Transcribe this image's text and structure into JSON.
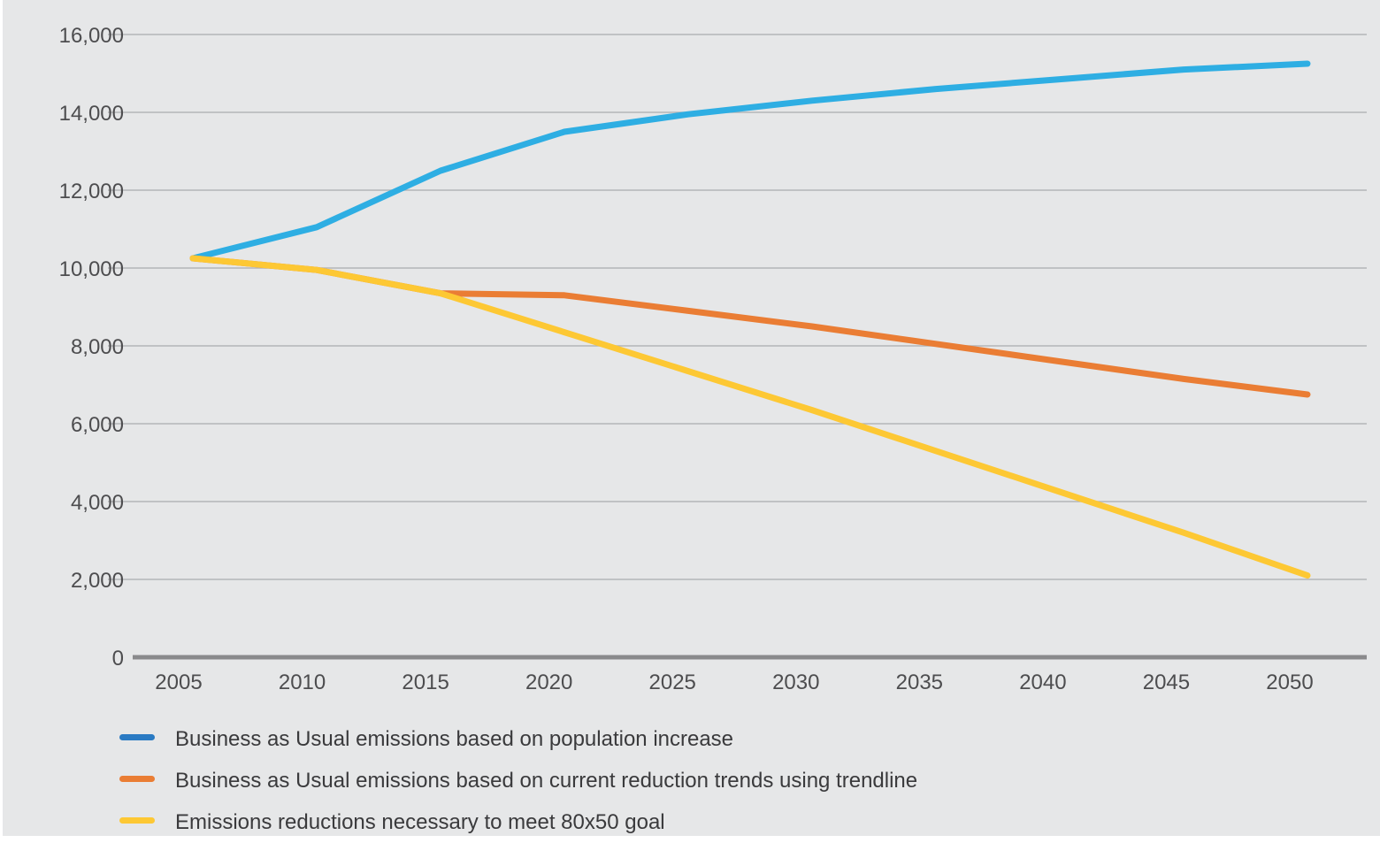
{
  "chart_data": {
    "type": "line",
    "title": "",
    "xlabel": "",
    "ylabel": "",
    "x": [
      2005,
      2010,
      2015,
      2020,
      2025,
      2030,
      2035,
      2040,
      2045,
      2050
    ],
    "x_tick_labels": [
      "2005",
      "2010",
      "2015",
      "2020",
      "2025",
      "2030",
      "2035",
      "2040",
      "2045",
      "2050"
    ],
    "y_ticks": [
      0,
      2000,
      4000,
      6000,
      8000,
      10000,
      12000,
      14000,
      16000
    ],
    "y_tick_labels": [
      "0",
      "2,000",
      "4,000",
      "6,000",
      "8,000",
      "10,000",
      "12,000",
      "14,000",
      "16,000"
    ],
    "ylim": [
      0,
      16000
    ],
    "grid": "horizontal",
    "legend_position": "bottom",
    "background_color": "#e6e7e8",
    "series": [
      {
        "name": "Business as Usual emissions based on population increase",
        "color": "#2eaee3",
        "legend_color": "#2a7ac3",
        "values": [
          10250,
          11050,
          12500,
          13500,
          13950,
          14300,
          14600,
          14850,
          15100,
          15250
        ]
      },
      {
        "name": "Business as Usual emissions based on current reduction trends using trendline",
        "color": "#ea7d34",
        "legend_color": "#ea7d34",
        "values": [
          10250,
          9950,
          9350,
          9300,
          8900,
          8500,
          8050,
          7600,
          7150,
          6750
        ]
      },
      {
        "name": "Emissions reductions necessary to meet 80x50 goal",
        "color": "#fdc834",
        "legend_color": "#fdc834",
        "values": [
          10250,
          9950,
          9350,
          8350,
          7350,
          6350,
          5300,
          4250,
          3200,
          2100
        ]
      }
    ]
  }
}
